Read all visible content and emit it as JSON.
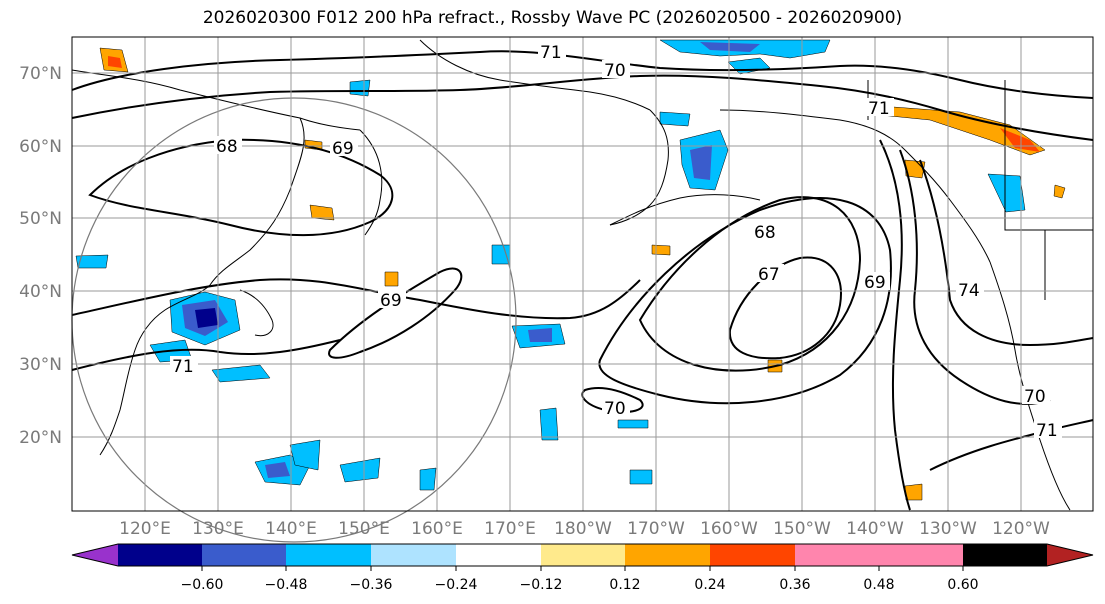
{
  "title": "2026020300 F012 200 hPa refract., Rossby Wave PC (2026020500 - 2026020900)",
  "lat_labels": [
    "70°N",
    "60°N",
    "50°N",
    "40°N",
    "30°N",
    "20°N"
  ],
  "lon_labels": [
    "120°E",
    "130°E",
    "140°E",
    "150°E",
    "160°E",
    "170°E",
    "180°W",
    "170°W",
    "160°W",
    "150°W",
    "140°W",
    "130°W",
    "120°W"
  ],
  "contour_labels": [
    "71",
    "70",
    "71",
    "68",
    "69",
    "69",
    "68",
    "67",
    "69",
    "71",
    "70",
    "70",
    "71",
    "74"
  ],
  "colorbar": {
    "colors": [
      "#9932cc",
      "#00008b",
      "#3a5ccc",
      "#00bfff",
      "#aee3ff",
      "#ffffff",
      "#ffea8c",
      "#ffa500",
      "#ff4500",
      "#b22222",
      "#ff85ad"
    ],
    "tick_labels": [
      "−0.60",
      "−0.48",
      "−0.36",
      "−0.24",
      "−0.12",
      "0.12",
      "0.24",
      "0.36",
      "0.48",
      "0.60"
    ]
  },
  "colors": {
    "grid": "#9a9a9a",
    "contour": "#000000",
    "circle": "#7a7a7a",
    "coast": "#000000"
  }
}
